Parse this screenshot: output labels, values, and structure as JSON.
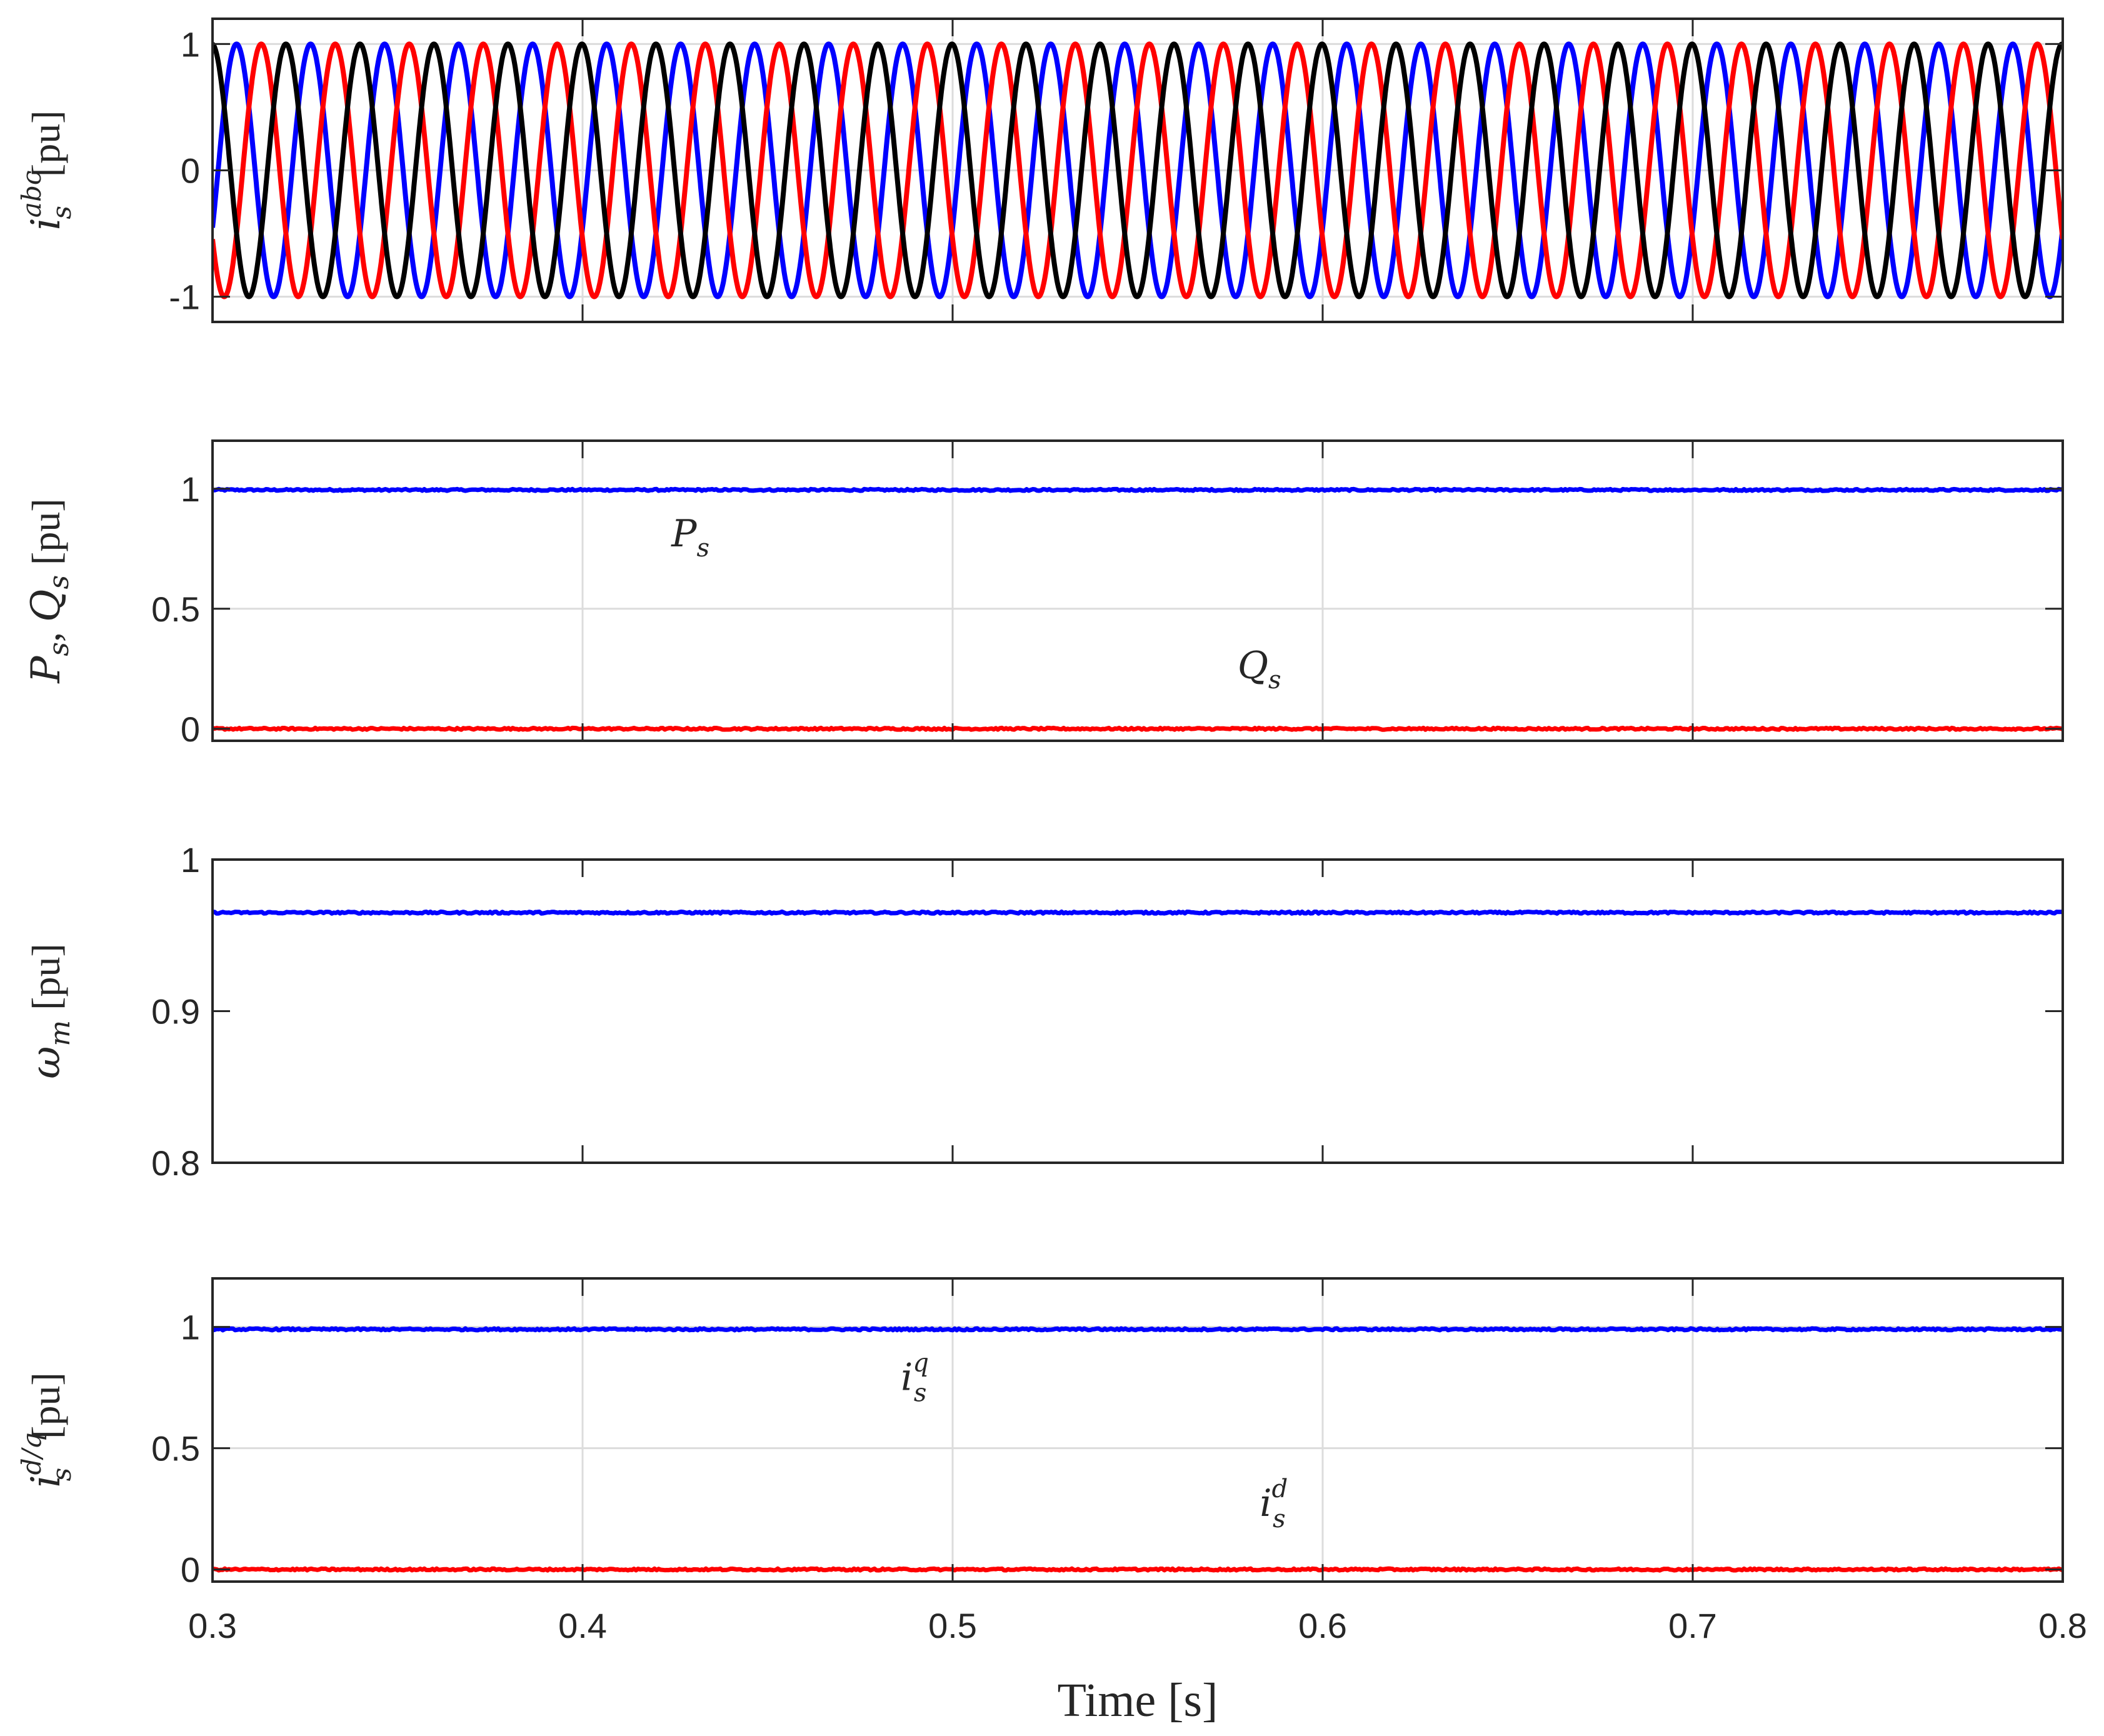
{
  "chart_data": [
    {
      "type": "line",
      "ylabel": "i_s^{abc} [pu]",
      "ylabel_parts": {
        "base": "i",
        "sub": "s",
        "sup": "abc",
        "unit": "[pu]"
      },
      "xlim": [
        0.3,
        0.8
      ],
      "ylim": [
        -1.2,
        1.2
      ],
      "yticks": [
        -1,
        0,
        1
      ],
      "ytick_labels": [
        "-1",
        "0",
        "1"
      ],
      "grid": true,
      "frequency_hz": 50,
      "amplitude": 1,
      "series": [
        {
          "name": "",
          "color": "#0000ff",
          "phase_deg": -27
        },
        {
          "name": "",
          "color": "#ff0000",
          "phase_deg": -147
        },
        {
          "name": "",
          "color": "#000000",
          "phase_deg": 93
        }
      ],
      "annotations": []
    },
    {
      "type": "line",
      "ylabel": "P_s, Q_s [pu]",
      "ylabel_parts": {
        "text": "P_s, Q_s",
        "unit": "[pu]"
      },
      "xlim": [
        0.3,
        0.8
      ],
      "ylim": [
        -0.05,
        1.2
      ],
      "yticks": [
        0,
        0.5,
        1
      ],
      "ytick_labels": [
        "0",
        "0.5",
        "1"
      ],
      "grid": true,
      "series": [
        {
          "name": "P_s",
          "color": "#0000ff",
          "x": [
            0.3,
            0.8
          ],
          "y": [
            0.995,
            0.995
          ]
        },
        {
          "name": "Q_s",
          "color": "#ff0000",
          "x": [
            0.3,
            0.8
          ],
          "y": [
            0.0,
            0.0
          ]
        }
      ],
      "annotations": [
        {
          "base": "P",
          "sub": "s",
          "x": 0.424,
          "y": 0.76
        },
        {
          "base": "Q",
          "sub": "s",
          "x": 0.577,
          "y": 0.21
        }
      ]
    },
    {
      "type": "line",
      "ylabel": "ω_m [pu]",
      "ylabel_parts": {
        "base": "ω",
        "sub": "m",
        "unit": "[pu]"
      },
      "xlim": [
        0.3,
        0.8
      ],
      "ylim": [
        0.8,
        1.0
      ],
      "yticks": [
        0.8,
        0.9,
        1
      ],
      "ytick_labels": [
        "0.8",
        "0.9",
        "1"
      ],
      "grid": false,
      "series": [
        {
          "name": "",
          "color": "#0000ff",
          "x": [
            0.3,
            0.8
          ],
          "y": [
            0.965,
            0.965
          ]
        }
      ],
      "annotations": []
    },
    {
      "type": "line",
      "ylabel": "i_s^{d/q} [pu]",
      "ylabel_parts": {
        "base": "i",
        "sub": "s",
        "sup": "d/q",
        "unit": "[pu]"
      },
      "xlabel": "Time [s]",
      "xlim": [
        0.3,
        0.8
      ],
      "ylim": [
        -0.05,
        1.2
      ],
      "yticks": [
        0,
        0.5,
        1
      ],
      "ytick_labels": [
        "0",
        "0.5",
        "1"
      ],
      "xticks": [
        0.3,
        0.4,
        0.5,
        0.6,
        0.7,
        0.8
      ],
      "xtick_labels": [
        "0.3",
        "0.4",
        "0.5",
        "0.6",
        "0.7",
        "0.8"
      ],
      "grid": true,
      "series": [
        {
          "name": "i_s^q",
          "color": "#0000ff",
          "x": [
            0.3,
            0.8
          ],
          "y": [
            0.99,
            0.99
          ]
        },
        {
          "name": "i_s^d",
          "color": "#ff0000",
          "x": [
            0.3,
            0.8
          ],
          "y": [
            0.0,
            0.0
          ]
        }
      ],
      "annotations": [
        {
          "base": "i",
          "sub": "s",
          "sup": "q",
          "x": 0.486,
          "y": 0.74
        },
        {
          "base": "i",
          "sub": "s",
          "sup": "d",
          "x": 0.583,
          "y": 0.22
        }
      ]
    }
  ],
  "xlabel": "Time [s]",
  "xtick_labels": [
    "0.3",
    "0.4",
    "0.5",
    "0.6",
    "0.7",
    "0.8"
  ]
}
